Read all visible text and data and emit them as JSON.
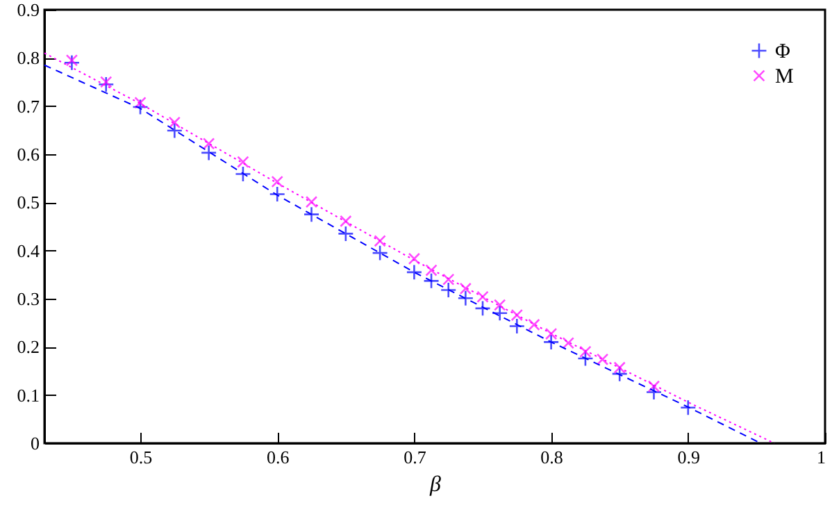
{
  "chart_data": {
    "type": "scatter",
    "xlabel": "β",
    "xlim": [
      0.43,
      1
    ],
    "ylim": [
      0,
      0.9
    ],
    "xticks": [
      0.5,
      0.6,
      0.7,
      0.8,
      0.9,
      1
    ],
    "yticks": [
      0,
      0.1,
      0.2,
      0.3,
      0.4,
      0.5,
      0.6,
      0.7,
      0.8,
      0.9
    ],
    "legend": "top right",
    "grid": false,
    "series": [
      {
        "name": "Φ",
        "type": "scatter",
        "color": "#0000ff",
        "marker": "cross",
        "x": [
          0.45,
          0.475,
          0.5,
          0.525,
          0.55,
          0.575,
          0.6,
          0.625,
          0.65,
          0.675,
          0.7,
          0.7125,
          0.725,
          0.7375,
          0.75,
          0.7625,
          0.775,
          0.8,
          0.825,
          0.85,
          0.875,
          0.9
        ],
        "values": [
          0.79,
          0.745,
          0.698,
          0.649,
          0.603,
          0.559,
          0.517,
          0.475,
          0.435,
          0.395,
          0.355,
          0.337,
          0.318,
          0.301,
          0.28,
          0.27,
          0.243,
          0.21,
          0.176,
          0.144,
          0.106,
          0.074
        ]
      },
      {
        "name": "M",
        "type": "scatter",
        "color": "#ff00ff",
        "marker": "cross",
        "x": [
          0.45,
          0.475,
          0.5,
          0.525,
          0.55,
          0.575,
          0.6,
          0.625,
          0.65,
          0.675,
          0.7,
          0.7125,
          0.725,
          0.7375,
          0.75,
          0.7625,
          0.775,
          0.7875,
          0.8,
          0.8125,
          0.825,
          0.8375,
          0.85,
          0.875
        ],
        "values": [
          0.795,
          0.75,
          0.707,
          0.666,
          0.622,
          0.584,
          0.543,
          0.501,
          0.461,
          0.42,
          0.383,
          0.359,
          0.34,
          0.321,
          0.304,
          0.287,
          0.266,
          0.246,
          0.227,
          0.208,
          0.19,
          0.174,
          0.157,
          0.118
        ]
      },
      {
        "type": "line",
        "color": "#0000ff",
        "line_style": "dashed",
        "x": [
          0.43,
          0.5,
          0.6,
          0.7,
          0.8,
          0.9,
          0.953
        ],
        "values": [
          0.785,
          0.695,
          0.515,
          0.355,
          0.21,
          0.075,
          0
        ]
      },
      {
        "type": "line",
        "color": "#ff00ff",
        "line_style": "dotted",
        "x": [
          0.43,
          0.5,
          0.6,
          0.7,
          0.8,
          0.9,
          0.963
        ],
        "values": [
          0.81,
          0.705,
          0.54,
          0.38,
          0.228,
          0.085,
          0
        ]
      }
    ]
  }
}
